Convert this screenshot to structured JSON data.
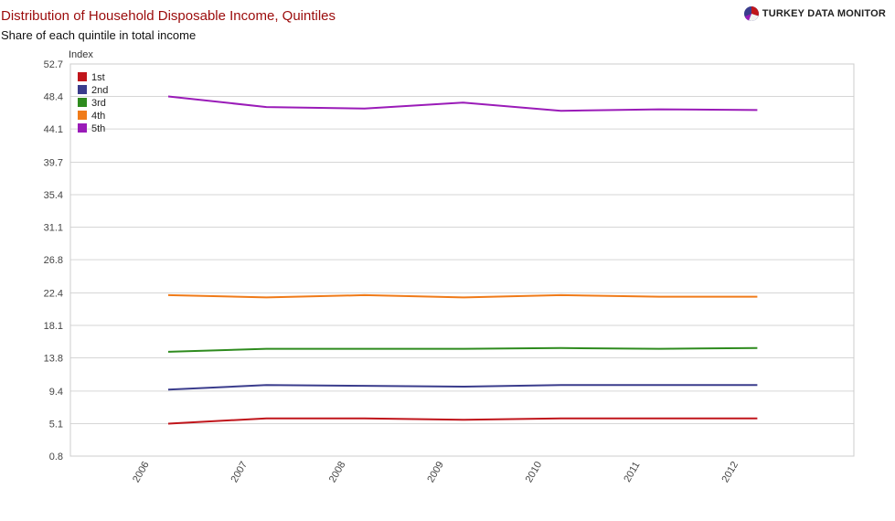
{
  "header": {
    "title": "Distribution of Household Disposable Income, Quintiles",
    "subtitle": "Share of each quintile in total income",
    "brand": "TURKEY DATA MONITOR",
    "brand_icon": "pie-logo-icon"
  },
  "colors": {
    "title": "#9b0b0b",
    "grid": "#d6d6d6",
    "frame": "#cccccc"
  },
  "chart_data": {
    "type": "line",
    "ylabel": "Index",
    "xlabel": "",
    "x": [
      "2006",
      "2007",
      "2008",
      "2009",
      "2010",
      "2011",
      "2012"
    ],
    "y_ticks": [
      "52.7",
      "48.4",
      "44.1",
      "39.7",
      "35.4",
      "31.1",
      "26.8",
      "22.4",
      "18.1",
      "13.8",
      "9.4",
      "5.1",
      "0.8"
    ],
    "ylim": [
      0.8,
      52.7
    ],
    "grid": true,
    "legend_position": "top-left",
    "series": [
      {
        "name": "1st",
        "color": "#c0151b",
        "values": [
          5.1,
          5.8,
          5.8,
          5.6,
          5.8,
          5.8,
          5.8
        ]
      },
      {
        "name": "2nd",
        "color": "#3a3c8c",
        "values": [
          9.6,
          10.2,
          10.1,
          10.0,
          10.2,
          10.2,
          10.2
        ]
      },
      {
        "name": "3rd",
        "color": "#2e8b1e",
        "values": [
          14.6,
          15.0,
          15.0,
          15.0,
          15.1,
          15.0,
          15.1
        ]
      },
      {
        "name": "4th",
        "color": "#f07b19",
        "values": [
          22.1,
          21.8,
          22.1,
          21.8,
          22.1,
          21.9,
          21.9
        ]
      },
      {
        "name": "5th",
        "color": "#9a1bb8",
        "values": [
          48.4,
          47.0,
          46.8,
          47.6,
          46.5,
          46.7,
          46.6
        ]
      }
    ]
  }
}
